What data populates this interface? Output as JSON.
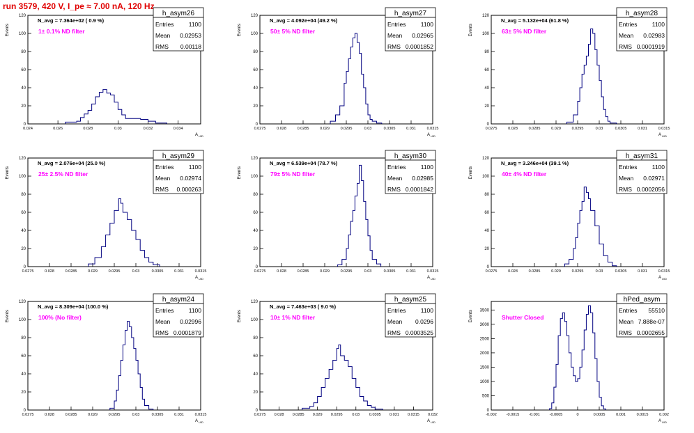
{
  "run_title": "run 3579,   420 V, I_pe ≈ 7.00 nA, 120 Hz",
  "colors": {
    "line": "#000080",
    "title": "#e00000",
    "annotation": "#ff00ff"
  },
  "y_axis_label": "Events",
  "x_axis_label": "A",
  "x_axis_sub": "UID",
  "stat_labels": {
    "entries": "Entries",
    "mean": "Mean",
    "rms": "RMS"
  },
  "chart_data": [
    {
      "type": "histogram",
      "name": "h_asym26",
      "navg": "N_avg = 7.364e+02 ( 0.9 %)",
      "filter": "1± 0.1% ND filter",
      "entries": "1100",
      "mean": "0.02953",
      "rms": "0.00118",
      "xlim": [
        0.024,
        0.0355
      ],
      "ylim": [
        0,
        120
      ],
      "xticks": [
        0.024,
        0.026,
        0.028,
        0.03,
        0.032,
        0.034
      ],
      "xtick_labels": [
        "0.024",
        "0.026",
        "0.028",
        "0.03",
        "0.032",
        "0.034"
      ],
      "yticks": [
        0,
        20,
        40,
        60,
        80,
        100,
        120
      ],
      "show_ylabels": true,
      "values": [
        [
          0.0265,
          2
        ],
        [
          0.02725,
          3
        ],
        [
          0.0275,
          7
        ],
        [
          0.02775,
          11
        ],
        [
          0.028,
          15
        ],
        [
          0.02825,
          22
        ],
        [
          0.0285,
          30
        ],
        [
          0.02875,
          35
        ],
        [
          0.029,
          38
        ],
        [
          0.02925,
          34
        ],
        [
          0.0295,
          32
        ],
        [
          0.02975,
          24
        ],
        [
          0.03,
          16
        ],
        [
          0.03025,
          10
        ],
        [
          0.0305,
          6
        ],
        [
          0.031,
          6
        ],
        [
          0.0315,
          5
        ],
        [
          0.032,
          3
        ],
        [
          0.0325,
          1
        ]
      ]
    },
    {
      "type": "histogram",
      "name": "h_asym27",
      "navg": "N_avg = 4.092e+04 (49.2 %)",
      "filter": "50± 5% ND filter",
      "entries": "1100",
      "mean": "0.02965",
      "rms": "0.0001852",
      "xlim": [
        0.0275,
        0.0315
      ],
      "ylim": [
        0,
        120
      ],
      "xticks": [
        0.0275,
        0.028,
        0.0285,
        0.029,
        0.0295,
        0.03,
        0.0305,
        0.031,
        0.0315
      ],
      "xtick_labels": [
        "0.0275",
        "0.028",
        "0.0285",
        "0.029",
        "0.0295",
        "0.03",
        "0.0305",
        "0.031",
        "0.0315"
      ],
      "yticks": [
        0,
        20,
        40,
        60,
        80,
        100,
        120
      ],
      "show_ylabels": true,
      "values": [
        [
          0.02913,
          3
        ],
        [
          0.02925,
          10
        ],
        [
          0.02935,
          20
        ],
        [
          0.02945,
          45
        ],
        [
          0.0295,
          58
        ],
        [
          0.02955,
          72
        ],
        [
          0.0296,
          85
        ],
        [
          0.02965,
          95
        ],
        [
          0.0297,
          100
        ],
        [
          0.02975,
          90
        ],
        [
          0.0298,
          78
        ],
        [
          0.02985,
          55
        ],
        [
          0.0299,
          40
        ],
        [
          0.02995,
          22
        ],
        [
          0.03,
          10
        ],
        [
          0.03005,
          5
        ],
        [
          0.0301,
          3
        ],
        [
          0.0302,
          1
        ]
      ]
    },
    {
      "type": "histogram",
      "name": "h_asym28",
      "navg": "N_avg = 5.132e+04 (61.8 %)",
      "filter": "63± 5% ND filter",
      "entries": "1100",
      "mean": "0.02983",
      "rms": "0.0001919",
      "xlim": [
        0.0275,
        0.0315
      ],
      "ylim": [
        0,
        120
      ],
      "xticks": [
        0.0275,
        0.028,
        0.0285,
        0.029,
        0.0295,
        0.03,
        0.0305,
        0.031,
        0.0315
      ],
      "xtick_labels": [
        "0.0275",
        "0.028",
        "0.0285",
        "0.029",
        "0.0295",
        "0.03",
        "0.0305",
        "0.031",
        "0.0315"
      ],
      "yticks": [
        0,
        20,
        40,
        60,
        80,
        100,
        120
      ],
      "show_ylabels": true,
      "values": [
        [
          0.02925,
          2
        ],
        [
          0.0294,
          10
        ],
        [
          0.0295,
          25
        ],
        [
          0.02955,
          40
        ],
        [
          0.0296,
          55
        ],
        [
          0.02965,
          65
        ],
        [
          0.0297,
          75
        ],
        [
          0.02975,
          88
        ],
        [
          0.0298,
          105
        ],
        [
          0.02985,
          100
        ],
        [
          0.0299,
          82
        ],
        [
          0.02995,
          65
        ],
        [
          0.03,
          48
        ],
        [
          0.03005,
          30
        ],
        [
          0.0301,
          16
        ],
        [
          0.03015,
          8
        ],
        [
          0.0302,
          3
        ],
        [
          0.03025,
          1
        ]
      ]
    },
    {
      "type": "histogram",
      "name": "h_asym29",
      "navg": "N_avg = 2.076e+04 (25.0 %)",
      "filter": "25± 2.5% ND filter",
      "entries": "1100",
      "mean": "0.02974",
      "rms": "0.000263",
      "xlim": [
        0.0275,
        0.0315
      ],
      "ylim": [
        0,
        120
      ],
      "xticks": [
        0.0275,
        0.028,
        0.0285,
        0.029,
        0.0295,
        0.03,
        0.0305,
        0.031,
        0.0315
      ],
      "xtick_labels": [
        "0.0275",
        "0.028",
        "0.0285",
        "0.029",
        "0.0295",
        "0.03",
        "0.0305",
        "0.031",
        "0.0315"
      ],
      "yticks": [
        0,
        20,
        40,
        60,
        80,
        100,
        120
      ],
      "show_ylabels": true,
      "values": [
        [
          0.0289,
          3
        ],
        [
          0.02905,
          10
        ],
        [
          0.0292,
          22
        ],
        [
          0.0293,
          35
        ],
        [
          0.0294,
          48
        ],
        [
          0.0295,
          62
        ],
        [
          0.0296,
          75
        ],
        [
          0.02965,
          70
        ],
        [
          0.0297,
          60
        ],
        [
          0.0298,
          52
        ],
        [
          0.0299,
          40
        ],
        [
          0.03,
          30
        ],
        [
          0.0301,
          18
        ],
        [
          0.0302,
          10
        ],
        [
          0.0303,
          5
        ],
        [
          0.0304,
          2
        ]
      ]
    },
    {
      "type": "histogram",
      "name": "h_asym30",
      "navg": "N_avg = 6.539e+04 (78.7 %)",
      "filter": "79± 5% ND filter",
      "entries": "1100",
      "mean": "0.02985",
      "rms": "0.0001842",
      "xlim": [
        0.0275,
        0.0315
      ],
      "ylim": [
        0,
        120
      ],
      "xticks": [
        0.0275,
        0.028,
        0.0285,
        0.029,
        0.0295,
        0.03,
        0.0305,
        0.031,
        0.0315
      ],
      "xtick_labels": [
        "0.0275",
        "0.028",
        "0.0285",
        "0.029",
        "0.0295",
        "0.03",
        "0.0305",
        "0.031",
        "0.0315"
      ],
      "yticks": [
        0,
        20,
        40,
        60,
        80,
        100,
        120
      ],
      "show_ylabels": true,
      "values": [
        [
          0.0293,
          2
        ],
        [
          0.0294,
          8
        ],
        [
          0.0295,
          20
        ],
        [
          0.02955,
          35
        ],
        [
          0.0296,
          50
        ],
        [
          0.02965,
          62
        ],
        [
          0.0297,
          78
        ],
        [
          0.02975,
          92
        ],
        [
          0.0298,
          112
        ],
        [
          0.02985,
          95
        ],
        [
          0.0299,
          72
        ],
        [
          0.02995,
          52
        ],
        [
          0.03,
          34
        ],
        [
          0.03005,
          18
        ],
        [
          0.0301,
          8
        ],
        [
          0.0302,
          3
        ]
      ]
    },
    {
      "type": "histogram",
      "name": "h_asym31",
      "navg": "N_avg = 3.246e+04 (39.1 %)",
      "filter": "40± 4% ND filter",
      "entries": "1100",
      "mean": "0.02971",
      "rms": "0.0002056",
      "xlim": [
        0.0275,
        0.0315
      ],
      "ylim": [
        0,
        120
      ],
      "xticks": [
        0.0275,
        0.028,
        0.0285,
        0.029,
        0.0295,
        0.03,
        0.0305,
        0.031,
        0.0315
      ],
      "xtick_labels": [
        "0.0275",
        "0.028",
        "0.0285",
        "0.029",
        "0.0295",
        "0.03",
        "0.0305",
        "0.031",
        "0.0315"
      ],
      "yticks": [
        0,
        20,
        40,
        60,
        80,
        100,
        120
      ],
      "show_ylabels": true,
      "values": [
        [
          0.0292,
          3
        ],
        [
          0.0293,
          8
        ],
        [
          0.0294,
          20
        ],
        [
          0.02945,
          32
        ],
        [
          0.0295,
          48
        ],
        [
          0.02955,
          62
        ],
        [
          0.0296,
          72
        ],
        [
          0.02965,
          88
        ],
        [
          0.0297,
          82
        ],
        [
          0.02975,
          75
        ],
        [
          0.0298,
          62
        ],
        [
          0.0299,
          45
        ],
        [
          0.03,
          25
        ],
        [
          0.0301,
          12
        ],
        [
          0.0302,
          5
        ],
        [
          0.0303,
          1
        ]
      ]
    },
    {
      "type": "histogram",
      "name": "h_asym24",
      "navg": "N_avg = 8.309e+04 (100.0 %)",
      "filter": "100% (No filter)",
      "entries": "1100",
      "mean": "0.02996",
      "rms": "0.0001879",
      "xlim": [
        0.0275,
        0.0315
      ],
      "ylim": [
        0,
        120
      ],
      "xticks": [
        0.0275,
        0.028,
        0.0285,
        0.029,
        0.0295,
        0.03,
        0.0305,
        0.031,
        0.0315
      ],
      "xtick_labels": [
        "0.0275",
        "0.028",
        "0.0285",
        "0.029",
        "0.0295",
        "0.03",
        "0.0305",
        "0.031",
        "0.0315"
      ],
      "yticks": [
        0,
        20,
        40,
        60,
        80,
        100,
        120
      ],
      "show_ylabels": true,
      "values": [
        [
          0.0294,
          2
        ],
        [
          0.0295,
          10
        ],
        [
          0.02955,
          22
        ],
        [
          0.0296,
          38
        ],
        [
          0.02965,
          55
        ],
        [
          0.0297,
          72
        ],
        [
          0.02975,
          88
        ],
        [
          0.0298,
          98
        ],
        [
          0.02985,
          92
        ],
        [
          0.0299,
          80
        ],
        [
          0.02995,
          68
        ],
        [
          0.03,
          55
        ],
        [
          0.03005,
          40
        ],
        [
          0.0301,
          25
        ],
        [
          0.03015,
          12
        ],
        [
          0.0302,
          5
        ],
        [
          0.0303,
          1
        ]
      ]
    },
    {
      "type": "histogram",
      "name": "h_asym25",
      "navg": "N_avg = 7.463e+03 ( 9.0 %)",
      "filter": "10± 1% ND filter",
      "entries": "1100",
      "mean": "0.0296",
      "rms": "0.0003525",
      "xlim": [
        0.0275,
        0.032
      ],
      "ylim": [
        0,
        120
      ],
      "xticks": [
        0.0275,
        0.028,
        0.0285,
        0.029,
        0.0295,
        0.03,
        0.0305,
        0.031,
        0.0315,
        0.032
      ],
      "xtick_labels": [
        "0.0275",
        "0.028",
        "0.0285",
        "0.029",
        "0.0295",
        "0.03",
        "0.0305",
        "0.031",
        "0.0315",
        "0.032"
      ],
      "yticks": [
        0,
        20,
        40,
        60,
        80,
        100,
        120
      ],
      "show_ylabels": true,
      "values": [
        [
          0.0286,
          2
        ],
        [
          0.0288,
          4
        ],
        [
          0.0289,
          8
        ],
        [
          0.029,
          15
        ],
        [
          0.0291,
          25
        ],
        [
          0.0292,
          35
        ],
        [
          0.0293,
          45
        ],
        [
          0.0294,
          55
        ],
        [
          0.0295,
          68
        ],
        [
          0.02955,
          72
        ],
        [
          0.0296,
          60
        ],
        [
          0.0297,
          55
        ],
        [
          0.0298,
          48
        ],
        [
          0.0299,
          35
        ],
        [
          0.03,
          25
        ],
        [
          0.0301,
          15
        ],
        [
          0.0302,
          10
        ],
        [
          0.0303,
          5
        ],
        [
          0.0304,
          3
        ],
        [
          0.0305,
          1
        ]
      ]
    },
    {
      "type": "histogram",
      "name": "hPed_asym",
      "navg": "",
      "filter": "Shutter Closed",
      "entries": "55510",
      "mean": "7.888e-07",
      "rms": "0.0002655",
      "xlim": [
        -0.002,
        0.002
      ],
      "ylim": [
        0,
        3800
      ],
      "xticks": [
        -0.002,
        -0.0015,
        -0.001,
        -0.0005,
        0,
        0.0005,
        0.001,
        0.0015,
        0.002
      ],
      "xtick_labels": [
        "-0.002",
        "-0.0015",
        "-0.001",
        "-0.0005",
        "0",
        "0.0005",
        "0.001",
        "0.0015",
        "0.002"
      ],
      "yticks": [
        0,
        500,
        1000,
        1500,
        2000,
        2500,
        3000,
        3500
      ],
      "show_ylabels": true,
      "values": [
        [
          -0.00065,
          50
        ],
        [
          -0.0006,
          250
        ],
        [
          -0.00055,
          800
        ],
        [
          -0.0005,
          1600
        ],
        [
          -0.00045,
          2600
        ],
        [
          -0.0004,
          3200
        ],
        [
          -0.00035,
          3400
        ],
        [
          -0.0003,
          3100
        ],
        [
          -0.00025,
          2600
        ],
        [
          -0.0002,
          2000
        ],
        [
          -0.00015,
          1500
        ],
        [
          -0.0001,
          1200
        ],
        [
          -5e-05,
          1000
        ],
        [
          0,
          1100
        ],
        [
          5e-05,
          1500
        ],
        [
          0.0001,
          2100
        ],
        [
          0.00015,
          2800
        ],
        [
          0.0002,
          3350
        ],
        [
          0.00025,
          3650
        ],
        [
          0.0003,
          3400
        ],
        [
          0.00035,
          2700
        ],
        [
          0.0004,
          1800
        ],
        [
          0.00045,
          1000
        ],
        [
          0.0005,
          450
        ],
        [
          0.00055,
          150
        ],
        [
          0.0006,
          40
        ]
      ]
    }
  ]
}
